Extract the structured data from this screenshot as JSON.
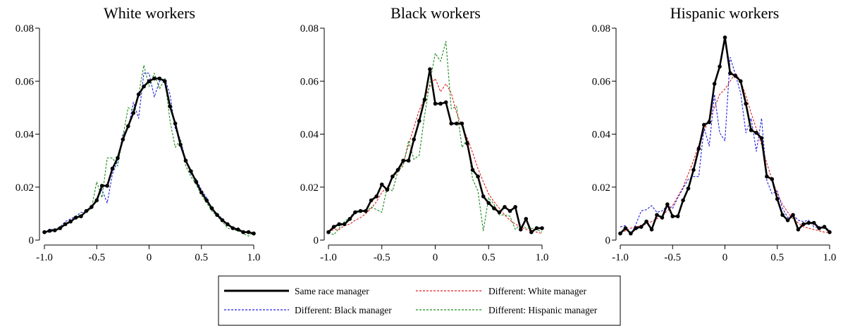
{
  "legend": {
    "entries": [
      {
        "label": "Same race manager",
        "color": "#000000",
        "style": "solid"
      },
      {
        "label": "Different: White manager",
        "color": "#e41a1c",
        "style": "dashed"
      },
      {
        "label": "Different: Black manager",
        "color": "#1f1fe0",
        "style": "dashed"
      },
      {
        "label": "Different: Hispanic manager",
        "color": "#1a8a1a",
        "style": "dashed"
      }
    ]
  },
  "chart_data": [
    {
      "type": "line",
      "title": "White workers",
      "xlabel": "",
      "ylabel": "",
      "xlim": [
        -1.0,
        1.0
      ],
      "ylim": [
        0,
        0.08
      ],
      "xticks": [
        -1.0,
        -0.5,
        0,
        0.5,
        1.0
      ],
      "xtick_labels": [
        "-1.0",
        "-0.5",
        "0",
        "0.5",
        "1.0"
      ],
      "yticks": [
        0,
        0.02,
        0.04,
        0.06,
        0.08
      ],
      "ytick_labels": [
        "0",
        "0.02",
        "0.04",
        "0.06",
        "0.08"
      ],
      "x": [
        -1.0,
        -0.95,
        -0.9,
        -0.85,
        -0.8,
        -0.75,
        -0.7,
        -0.65,
        -0.6,
        -0.55,
        -0.5,
        -0.45,
        -0.4,
        -0.35,
        -0.3,
        -0.25,
        -0.2,
        -0.15,
        -0.1,
        -0.05,
        0,
        0.05,
        0.1,
        0.15,
        0.2,
        0.25,
        0.3,
        0.35,
        0.4,
        0.45,
        0.5,
        0.55,
        0.6,
        0.65,
        0.7,
        0.75,
        0.8,
        0.85,
        0.9,
        0.95,
        1.0
      ],
      "series": [
        {
          "name": "Same race manager",
          "color": "#000000",
          "style": "solid",
          "markers": true,
          "values": [
            0.003,
            0.0035,
            0.0037,
            0.0045,
            0.006,
            0.007,
            0.0085,
            0.009,
            0.011,
            0.0125,
            0.015,
            0.0205,
            0.0205,
            0.027,
            0.031,
            0.038,
            0.043,
            0.048,
            0.055,
            0.058,
            0.06,
            0.061,
            0.061,
            0.06,
            0.0505,
            0.044,
            0.036,
            0.03,
            0.026,
            0.022,
            0.018,
            0.015,
            0.012,
            0.0095,
            0.0075,
            0.006,
            0.0045,
            0.004,
            0.003,
            0.003,
            0.0025
          ]
        },
        {
          "name": "Different: Black manager",
          "color": "#1f1fe0",
          "style": "dashed",
          "markers": false,
          "values": [
            0.003,
            0.004,
            0.004,
            0.005,
            0.007,
            0.008,
            0.009,
            0.0105,
            0.0105,
            0.012,
            0.016,
            0.019,
            0.014,
            0.025,
            0.03,
            0.04,
            0.042,
            0.052,
            0.046,
            0.063,
            0.063,
            0.054,
            0.06,
            0.061,
            0.055,
            0.042,
            0.038,
            0.03,
            0.025,
            0.023,
            0.019,
            0.016,
            0.012,
            0.01,
            0.008,
            0.0055,
            0.005,
            0.004,
            0.0035,
            0.003,
            0.0025
          ]
        },
        {
          "name": "Different: Hispanic manager",
          "color": "#1a8a1a",
          "style": "dashed",
          "markers": false,
          "values": [
            0.003,
            0.003,
            0.004,
            0.005,
            0.006,
            0.007,
            0.009,
            0.0095,
            0.0105,
            0.012,
            0.022,
            0.016,
            0.031,
            0.031,
            0.028,
            0.039,
            0.05,
            0.049,
            0.055,
            0.066,
            0.058,
            0.063,
            0.057,
            0.061,
            0.045,
            0.035,
            0.038,
            0.028,
            0.024,
            0.021,
            0.017,
            0.014,
            0.011,
            0.009,
            0.007,
            0.0045,
            0.004,
            0.0035,
            0.0025,
            0.0015,
            0.003
          ]
        }
      ]
    },
    {
      "type": "line",
      "title": "Black workers",
      "xlabel": "",
      "ylabel": "",
      "xlim": [
        -1.0,
        1.0
      ],
      "ylim": [
        0,
        0.08
      ],
      "xticks": [
        -1.0,
        -0.5,
        0,
        0.5,
        1.0
      ],
      "xtick_labels": [
        "-1.0",
        "-0.5",
        "0",
        "0.5",
        "1.0"
      ],
      "yticks": [
        0,
        0.02,
        0.04,
        0.06,
        0.08
      ],
      "ytick_labels": [
        "0",
        "0.02",
        "0.04",
        "0.06",
        "0.08"
      ],
      "x": [
        -1.0,
        -0.95,
        -0.9,
        -0.85,
        -0.8,
        -0.75,
        -0.7,
        -0.65,
        -0.6,
        -0.55,
        -0.5,
        -0.45,
        -0.4,
        -0.35,
        -0.3,
        -0.25,
        -0.2,
        -0.15,
        -0.1,
        -0.05,
        0,
        0.05,
        0.1,
        0.15,
        0.2,
        0.25,
        0.3,
        0.35,
        0.4,
        0.45,
        0.5,
        0.55,
        0.6,
        0.65,
        0.7,
        0.75,
        0.8,
        0.85,
        0.9,
        0.95,
        1.0
      ],
      "series": [
        {
          "name": "Same race manager",
          "color": "#000000",
          "style": "solid",
          "markers": true,
          "values": [
            0.003,
            0.005,
            0.006,
            0.006,
            0.008,
            0.0105,
            0.011,
            0.011,
            0.015,
            0.0165,
            0.021,
            0.019,
            0.024,
            0.0265,
            0.03,
            0.03,
            0.038,
            0.045,
            0.053,
            0.0645,
            0.0515,
            0.0515,
            0.052,
            0.044,
            0.044,
            0.044,
            0.0365,
            0.0265,
            0.024,
            0.0165,
            0.014,
            0.012,
            0.0105,
            0.0125,
            0.011,
            0.0125,
            0.004,
            0.008,
            0.003,
            0.0045,
            0.0045
          ]
        },
        {
          "name": "Different: White manager",
          "color": "#e41a1c",
          "style": "dashed",
          "markers": false,
          "values": [
            0.003,
            0.004,
            0.004,
            0.0055,
            0.006,
            0.0075,
            0.0085,
            0.01,
            0.012,
            0.0145,
            0.018,
            0.02,
            0.0235,
            0.026,
            0.029,
            0.036,
            0.0425,
            0.049,
            0.0535,
            0.058,
            0.061,
            0.056,
            0.059,
            0.0555,
            0.048,
            0.043,
            0.0385,
            0.033,
            0.027,
            0.022,
            0.0175,
            0.0145,
            0.012,
            0.0095,
            0.0075,
            0.006,
            0.005,
            0.004,
            0.0035,
            0.003,
            0.0025
          ]
        },
        {
          "name": "Different: Hispanic manager",
          "color": "#1a8a1a",
          "style": "dashed",
          "markers": false,
          "values": [
            0.003,
            0.002,
            0.0045,
            0.007,
            0.0085,
            0.011,
            0.011,
            0.0105,
            0.0125,
            0.0115,
            0.0105,
            0.02,
            0.0185,
            0.026,
            0.028,
            0.0375,
            0.0305,
            0.032,
            0.047,
            0.0595,
            0.0705,
            0.0675,
            0.075,
            0.0495,
            0.0505,
            0.035,
            0.038,
            0.023,
            0.0185,
            0.0035,
            0.016,
            0.0135,
            0.0095,
            0.0095,
            0.009,
            0.004,
            0.006,
            0.0045,
            0.0045,
            0.004,
            0.003
          ]
        }
      ]
    },
    {
      "type": "line",
      "title": "Hispanic workers",
      "xlabel": "",
      "ylabel": "",
      "xlim": [
        -1.0,
        1.0
      ],
      "ylim": [
        0,
        0.08
      ],
      "xticks": [
        -1.0,
        -0.5,
        0,
        0.5,
        1.0
      ],
      "xtick_labels": [
        "-1.0",
        "-0.5",
        "0",
        "0.5",
        "1.0"
      ],
      "yticks": [
        0,
        0.02,
        0.04,
        0.06,
        0.08
      ],
      "ytick_labels": [
        "0",
        "0.02",
        "0.04",
        "0.06",
        "0.08"
      ],
      "x": [
        -1.0,
        -0.95,
        -0.9,
        -0.85,
        -0.8,
        -0.75,
        -0.7,
        -0.65,
        -0.6,
        -0.55,
        -0.5,
        -0.45,
        -0.4,
        -0.35,
        -0.3,
        -0.25,
        -0.2,
        -0.15,
        -0.1,
        -0.05,
        0,
        0.05,
        0.1,
        0.15,
        0.2,
        0.25,
        0.3,
        0.35,
        0.4,
        0.45,
        0.5,
        0.55,
        0.6,
        0.65,
        0.7,
        0.75,
        0.8,
        0.85,
        0.9,
        0.95,
        1.0
      ],
      "series": [
        {
          "name": "Same race manager",
          "color": "#000000",
          "style": "solid",
          "markers": true,
          "values": [
            0.0025,
            0.0045,
            0.0025,
            0.0045,
            0.005,
            0.007,
            0.004,
            0.0095,
            0.0085,
            0.0135,
            0.009,
            0.009,
            0.015,
            0.0195,
            0.0265,
            0.0345,
            0.0435,
            0.0445,
            0.059,
            0.0655,
            0.0765,
            0.063,
            0.062,
            0.06,
            0.0515,
            0.0415,
            0.0405,
            0.0385,
            0.024,
            0.023,
            0.0155,
            0.0095,
            0.0075,
            0.0095,
            0.004,
            0.006,
            0.0065,
            0.0065,
            0.0045,
            0.005,
            0.003
          ]
        },
        {
          "name": "Different: White manager",
          "color": "#e41a1c",
          "style": "dashed",
          "markers": false,
          "values": [
            0.003,
            0.0035,
            0.0045,
            0.005,
            0.0055,
            0.006,
            0.007,
            0.008,
            0.0095,
            0.011,
            0.013,
            0.0165,
            0.02,
            0.025,
            0.03,
            0.036,
            0.041,
            0.046,
            0.05,
            0.055,
            0.057,
            0.06,
            0.063,
            0.06,
            0.0545,
            0.048,
            0.042,
            0.036,
            0.029,
            0.023,
            0.0175,
            0.0135,
            0.0105,
            0.008,
            0.0065,
            0.005,
            0.0045,
            0.004,
            0.0035,
            0.003,
            0.0028
          ]
        },
        {
          "name": "Different: Black manager",
          "color": "#1f1fe0",
          "style": "dashed",
          "markers": false,
          "values": [
            0.005,
            0.0055,
            0.002,
            0.006,
            0.011,
            0.0115,
            0.013,
            0.0105,
            0.011,
            0.013,
            0.012,
            0.016,
            0.0195,
            0.023,
            0.024,
            0.024,
            0.0425,
            0.0355,
            0.055,
            0.0405,
            0.0375,
            0.069,
            0.0625,
            0.0555,
            0.0405,
            0.046,
            0.0335,
            0.046,
            0.0225,
            0.0175,
            0.0185,
            0.012,
            0.0085,
            0.0095,
            0.0075,
            0.007,
            0.0075,
            0.005,
            0.0045,
            0.0045,
            0.004
          ]
        }
      ]
    }
  ]
}
